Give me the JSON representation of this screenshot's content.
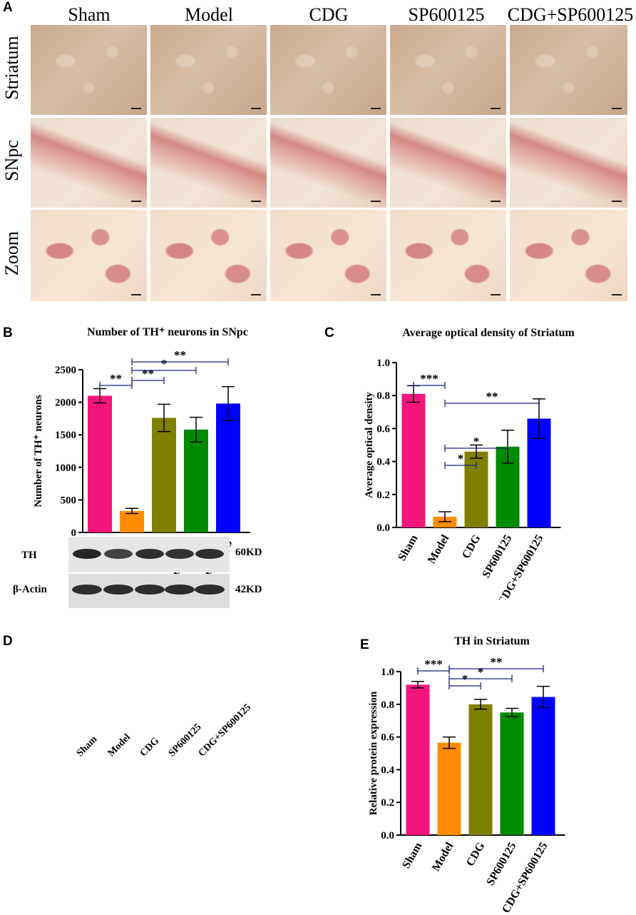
{
  "panel_labels": {
    "a": "A",
    "b": "B",
    "c": "C",
    "d": "D",
    "e": "E"
  },
  "micrograph": {
    "columns": [
      "Sham",
      "Model",
      "CDG",
      "SP600125",
      "CDG+SP600125"
    ],
    "rows": [
      "Striatum",
      "SNpc",
      "Zoom"
    ]
  },
  "blot": {
    "lanes": [
      "Sham",
      "Model",
      "CDG",
      "SP600125",
      "CDG+SP600125"
    ],
    "bands": [
      {
        "name": "TH",
        "size": "60KD"
      },
      {
        "name": "β-Actin",
        "size": "42KD"
      }
    ]
  },
  "chart_data": [
    {
      "id": "b",
      "type": "bar",
      "title": "Number of TH⁺ neurons in SNpc",
      "ylabel": "Number of TH⁺ neurons",
      "categories": [
        "Sham",
        "Model",
        "CDG",
        "SP600125",
        "CDG+SP600125"
      ],
      "values": [
        2100,
        330,
        1760,
        1580,
        1980
      ],
      "errors": [
        110,
        40,
        210,
        190,
        260
      ],
      "colors": [
        "#f4157c",
        "#ff8c00",
        "#808000",
        "#008a00",
        "#0000ff"
      ],
      "ylim": [
        0,
        2500
      ],
      "yticks": [
        "0",
        "500",
        "1000",
        "1500",
        "2000",
        "2500"
      ],
      "significance": [
        {
          "from": 0,
          "to": 1,
          "label": "**"
        },
        {
          "from": 1,
          "to": 2,
          "label": "**"
        },
        {
          "from": 1,
          "to": 3,
          "label": "*"
        },
        {
          "from": 1,
          "to": 4,
          "label": "**"
        }
      ]
    },
    {
      "id": "c",
      "type": "bar",
      "title": "Average optical density of Striatum",
      "ylabel": "Average optical density",
      "categories": [
        "Sham",
        "Model",
        "CDG",
        "SP600125",
        "CDG+SP600125"
      ],
      "values": [
        0.81,
        0.065,
        0.46,
        0.49,
        0.66
      ],
      "errors": [
        0.05,
        0.03,
        0.04,
        0.1,
        0.12
      ],
      "colors": [
        "#f4157c",
        "#ff8c00",
        "#808000",
        "#008a00",
        "#0000ff"
      ],
      "ylim": [
        0,
        1.0
      ],
      "yticks": [
        "0.0",
        "0.2",
        "0.4",
        "0.6",
        "0.8",
        "1.0"
      ],
      "significance": [
        {
          "from": 0,
          "to": 1,
          "label": "***"
        },
        {
          "from": 1,
          "to": 2,
          "label": "*"
        },
        {
          "from": 1,
          "to": 3,
          "label": "*"
        },
        {
          "from": 1,
          "to": 4,
          "label": "**"
        }
      ]
    },
    {
      "id": "e",
      "type": "bar",
      "title": "TH in Striatum",
      "ylabel": "Relative protein expression",
      "categories": [
        "Sham",
        "Model",
        "CDG",
        "SP600125",
        "CDG+SP600125"
      ],
      "values": [
        0.92,
        0.565,
        0.8,
        0.75,
        0.845
      ],
      "errors": [
        0.02,
        0.035,
        0.03,
        0.025,
        0.065
      ],
      "colors": [
        "#f4157c",
        "#ff8c00",
        "#808000",
        "#008a00",
        "#0000ff"
      ],
      "ylim": [
        0,
        1.0
      ],
      "yticks": [
        "0.0",
        "0.2",
        "0.4",
        "0.6",
        "0.8",
        "1.0"
      ],
      "significance": [
        {
          "from": 0,
          "to": 1,
          "label": "***"
        },
        {
          "from": 1,
          "to": 2,
          "label": "*"
        },
        {
          "from": 1,
          "to": 3,
          "label": "*"
        },
        {
          "from": 1,
          "to": 4,
          "label": "**"
        }
      ]
    }
  ]
}
